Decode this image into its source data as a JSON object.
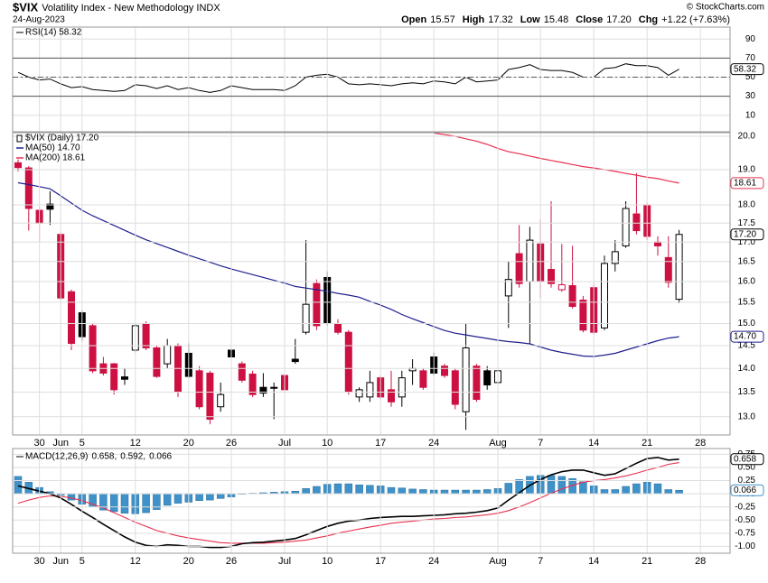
{
  "header": {
    "symbol": "$VIX",
    "name": "Volatility Index - New Methodology INDX",
    "date": "24-Aug-2023",
    "watermark": "© StockCharts.com",
    "quote": [
      {
        "label": "Open",
        "value": "15.57"
      },
      {
        "label": "High",
        "value": "17.32"
      },
      {
        "label": "Low",
        "value": "15.48"
      },
      {
        "label": "Close",
        "value": "17.20"
      },
      {
        "label": "Chg",
        "value": "+1.22 (+7.63%)"
      }
    ]
  },
  "chart_data": [
    {
      "type": "candlestick",
      "name": "$VIX (Daily) 17.20",
      "log": true,
      "up_color": "#000000",
      "down_color": "#cc1142",
      "x": [
        "2023-05-25",
        "2023-05-26",
        "2023-05-30",
        "2023-05-31",
        "2023-06-01",
        "2023-06-02",
        "2023-06-05",
        "2023-06-06",
        "2023-06-07",
        "2023-06-08",
        "2023-06-09",
        "2023-06-12",
        "2023-06-13",
        "2023-06-14",
        "2023-06-15",
        "2023-06-16",
        "2023-06-20",
        "2023-06-21",
        "2023-06-22",
        "2023-06-23",
        "2023-06-26",
        "2023-06-27",
        "2023-06-28",
        "2023-06-29",
        "2023-06-30",
        "2023-07-03",
        "2023-07-05",
        "2023-07-06",
        "2023-07-07",
        "2023-07-10",
        "2023-07-11",
        "2023-07-12",
        "2023-07-13",
        "2023-07-14",
        "2023-07-17",
        "2023-07-18",
        "2023-07-19",
        "2023-07-20",
        "2023-07-21",
        "2023-07-24",
        "2023-07-25",
        "2023-07-26",
        "2023-07-27",
        "2023-07-28",
        "2023-07-31",
        "2023-08-01",
        "2023-08-02",
        "2023-08-03",
        "2023-08-04",
        "2023-08-07",
        "2023-08-08",
        "2023-08-09",
        "2023-08-10",
        "2023-08-11",
        "2023-08-14",
        "2023-08-15",
        "2023-08-16",
        "2023-08-17",
        "2023-08-18",
        "2023-08-21",
        "2023-08-22",
        "2023-08-23",
        "2023-08-24"
      ],
      "open": [
        19.2,
        19.05,
        17.85,
        18.02,
        17.2,
        15.75,
        15.25,
        14.95,
        14.1,
        14.1,
        13.82,
        14.4,
        15,
        14.45,
        14.1,
        14.5,
        14.33,
        13.95,
        13.9,
        13.2,
        14.4,
        14.1,
        13.88,
        13.6,
        13.6,
        13.85,
        14.2,
        14.8,
        15.95,
        16.1,
        15,
        14.8,
        13.4,
        13.4,
        13.8,
        13.55,
        13.4,
        13.95,
        13.95,
        14.25,
        14.05,
        13.95,
        13.1,
        14.05,
        13.95,
        13.7,
        15.65,
        16.7,
        16,
        16.95,
        16.3,
        15.8,
        15.9,
        15.55,
        15.85,
        14.9,
        16.45,
        16.9,
        17.75,
        18,
        17,
        16.6,
        15.57
      ],
      "high": [
        19.3,
        19.1,
        17.95,
        18.38,
        17.25,
        15.8,
        15.3,
        15,
        14.25,
        14.12,
        14,
        15,
        15.05,
        14.5,
        14.65,
        14.55,
        14.55,
        14.05,
        13.95,
        13.7,
        14.65,
        14.15,
        13.95,
        13.9,
        13.7,
        13.95,
        14.65,
        17.05,
        16.05,
        16.25,
        15.1,
        14.85,
        13.6,
        13.95,
        13.85,
        13.95,
        13.95,
        14.2,
        14,
        14.35,
        14.1,
        14,
        15,
        14.1,
        14.05,
        14.25,
        16.5,
        17.45,
        17.4,
        17.6,
        18.1,
        16.95,
        16.9,
        15.65,
        15.95,
        16.65,
        17.05,
        18.1,
        18.9,
        18.05,
        17.15,
        17.15,
        17.32
      ],
      "low": [
        18.95,
        17.3,
        17,
        17.45,
        15.55,
        14.4,
        14.6,
        13.9,
        13.85,
        13.45,
        13.65,
        14.35,
        14.4,
        13.8,
        14,
        13.4,
        13.8,
        13.15,
        12.85,
        13.1,
        14,
        13.7,
        13.4,
        13.4,
        12.95,
        13.5,
        14.1,
        14.75,
        14.85,
        14.95,
        14.75,
        13.45,
        13.3,
        13.3,
        13.35,
        13.2,
        13.2,
        13.65,
        13.55,
        13.85,
        13.8,
        13.15,
        12.74,
        13.3,
        13.55,
        13.65,
        14.9,
        15.85,
        14.55,
        15.6,
        15.85,
        15.75,
        15.35,
        14.8,
        14.75,
        14.85,
        16.25,
        16.85,
        17.2,
        17.05,
        16.65,
        15.85,
        15.48
      ],
      "close": [
        19.06,
        17.9,
        17.5,
        17.88,
        15.6,
        14.55,
        14.7,
        13.95,
        13.9,
        13.55,
        13.77,
        14.95,
        14.45,
        13.83,
        14.5,
        13.5,
        13.83,
        13.2,
        12.95,
        13.45,
        14.25,
        13.75,
        13.45,
        13.48,
        13.58,
        13.55,
        14.15,
        15.45,
        14.95,
        15,
        14.8,
        13.5,
        13.55,
        13.7,
        13.4,
        13.3,
        13.8,
        14,
        13.6,
        13.9,
        13.85,
        13.25,
        14.45,
        13.35,
        13.65,
        13.95,
        16.05,
        15.95,
        17.05,
        16,
        15.95,
        15.92,
        15.4,
        14.85,
        14.8,
        16.45,
        16.75,
        17.9,
        17.3,
        17.15,
        16.9,
        15.98,
        17.2
      ],
      "last_label": {
        "value": 17.2,
        "label": "17.20"
      },
      "overlays": [
        {
          "name": "MA(50) 14.70",
          "color": "#1f1f8f",
          "values": [
            18.62,
            18.57,
            18.51,
            18.45,
            18.25,
            18.05,
            17.85,
            17.7,
            17.57,
            17.44,
            17.31,
            17.18,
            17.06,
            16.96,
            16.86,
            16.76,
            16.66,
            16.57,
            16.48,
            16.39,
            16.31,
            16.24,
            16.17,
            16.1,
            16.03,
            15.96,
            15.88,
            15.84,
            15.8,
            15.76,
            15.71,
            15.67,
            15.62,
            15.52,
            15.43,
            15.33,
            15.21,
            15.11,
            15.02,
            14.93,
            14.84,
            14.78,
            14.74,
            14.7,
            14.66,
            14.62,
            14.59,
            14.57,
            14.54,
            14.47,
            14.4,
            14.35,
            14.31,
            14.27,
            14.26,
            14.29,
            14.33,
            14.4,
            14.47,
            14.54,
            14.61,
            14.67,
            14.7
          ],
          "last_label": {
            "value": 14.7,
            "label": "14.70"
          }
        },
        {
          "name": "MA(200) 18.61",
          "color": "#e8304f",
          "values": [
            null,
            null,
            null,
            null,
            null,
            null,
            null,
            null,
            null,
            null,
            null,
            null,
            null,
            null,
            null,
            null,
            null,
            null,
            null,
            null,
            null,
            null,
            null,
            null,
            null,
            null,
            null,
            null,
            null,
            null,
            null,
            null,
            null,
            null,
            null,
            null,
            null,
            null,
            null,
            20.1,
            20.05,
            20,
            19.92,
            19.85,
            19.75,
            19.63,
            19.53,
            19.47,
            19.4,
            19.33,
            19.27,
            19.21,
            19.15,
            19.09,
            19.05,
            19,
            18.95,
            18.89,
            18.84,
            18.78,
            18.74,
            18.67,
            18.61
          ],
          "last_label": 18.61
        }
      ],
      "ylim": [
        12.64,
        20.11
      ],
      "yticks": [
        {
          "value": 20,
          "label": "20.0"
        },
        {
          "value": 19,
          "label": "19.0"
        },
        {
          "value": 18,
          "label": "18.0"
        },
        17.5,
        {
          "value": 17,
          "label": "17.0"
        },
        16.5,
        {
          "value": 16,
          "label": "16.0"
        },
        15.5,
        {
          "value": 15,
          "label": "15.0"
        },
        14.5,
        {
          "value": 14,
          "label": "14.0"
        },
        13.5,
        {
          "value": 13,
          "label": "13.0"
        }
      ],
      "xticks": [
        {
          "value": "2023-05-30",
          "label": "30"
        },
        {
          "value": "2023-06-01",
          "label": "Jun"
        },
        {
          "value": "2023-06-05",
          "label": "5"
        },
        {
          "value": "2023-06-12",
          "label": "12"
        },
        {
          "value": "2023-06-20",
          "label": "20"
        },
        {
          "value": "2023-06-26",
          "label": "26"
        },
        {
          "value": "2023-07-03",
          "label": "Jul"
        },
        {
          "value": "2023-07-10",
          "label": "10"
        },
        {
          "value": "2023-07-17",
          "label": "17"
        },
        {
          "value": "2023-07-24",
          "label": "24"
        },
        {
          "value": "2023-08-01",
          "label": "Aug"
        },
        {
          "value": "2023-08-07",
          "label": "7"
        },
        {
          "value": "2023-08-14",
          "label": "14"
        },
        {
          "value": "2023-08-21",
          "label": "21"
        },
        {
          "value": "2023-08-28",
          "label": "28"
        }
      ],
      "grid": true
    },
    {
      "type": "line",
      "ylim": [
        -7.3,
        102.5
      ],
      "yticks": [
        90,
        70,
        50,
        30,
        10
      ],
      "grid": true,
      "ref_lines": [
        {
          "value": 70,
          "style": "solid"
        },
        {
          "value": 50,
          "style": "dashdot"
        },
        {
          "value": 30,
          "style": "solid"
        }
      ],
      "series": [
        {
          "name": "RSI(14) 58.32",
          "color": "#000000",
          "values": [
            55,
            50,
            47,
            48,
            43,
            39,
            40,
            37,
            36,
            35,
            36,
            42,
            41,
            38,
            41,
            37,
            39,
            36,
            34,
            36,
            41,
            39,
            37,
            37,
            37,
            36,
            41,
            50,
            52,
            53,
            50,
            43,
            42,
            43,
            42,
            41,
            43,
            44,
            43,
            46,
            45,
            43,
            50,
            45,
            46,
            47,
            58,
            60,
            63,
            58,
            57,
            57,
            55,
            50,
            50,
            59,
            60,
            64,
            62,
            62,
            60,
            52,
            58.32
          ],
          "last_label": 58.32
        }
      ]
    },
    {
      "type": "macd",
      "legend_title": "MACD(12,26,9)",
      "ylim": [
        -1.13,
        0.86
      ],
      "yticks": [
        0.75,
        {
          "value": 0.5,
          "label": "0.50"
        },
        0.25,
        {
          "value": 0,
          "label": "0.00"
        },
        -0.25,
        {
          "value": -0.5,
          "label": "-0.50"
        },
        -0.75,
        {
          "value": -1,
          "label": "-1.00"
        }
      ],
      "grid": true,
      "series": [
        {
          "name": "0.066",
          "kind": "bar",
          "color": "#3f92c9",
          "values": [
            0.33,
            0.22,
            0.12,
            0.04,
            -0.03,
            -0.12,
            -0.2,
            -0.25,
            -0.31,
            -0.34,
            -0.37,
            -0.38,
            -0.36,
            -0.3,
            -0.22,
            -0.18,
            -0.16,
            -0.13,
            -0.12,
            -0.09,
            -0.06,
            -0.01,
            0.01,
            0.02,
            0.03,
            0.04,
            0.05,
            0.1,
            0.14,
            0.18,
            0.19,
            0.19,
            0.17,
            0.16,
            0.15,
            0.12,
            0.11,
            0.09,
            0.08,
            0.07,
            0.07,
            0.07,
            0.07,
            0.07,
            0.08,
            0.1,
            0.2,
            0.27,
            0.33,
            0.35,
            0.35,
            0.33,
            0.29,
            0.23,
            0.15,
            0.08,
            0.08,
            0.14,
            0.19,
            0.22,
            0.19,
            0.08,
            0.066
          ],
          "last_label": 0.066
        },
        {
          "name": "0.592,",
          "kind": "line",
          "color": "#e8304f",
          "values": [
            -0.18,
            -0.12,
            -0.07,
            -0.04,
            -0.05,
            -0.08,
            -0.13,
            -0.2,
            -0.27,
            -0.36,
            -0.45,
            -0.54,
            -0.62,
            -0.7,
            -0.75,
            -0.8,
            -0.84,
            -0.87,
            -0.9,
            -0.93,
            -0.94,
            -0.94,
            -0.94,
            -0.94,
            -0.93,
            -0.92,
            -0.9,
            -0.88,
            -0.84,
            -0.8,
            -0.75,
            -0.71,
            -0.67,
            -0.63,
            -0.6,
            -0.56,
            -0.54,
            -0.52,
            -0.5,
            -0.48,
            -0.47,
            -0.45,
            -0.44,
            -0.42,
            -0.4,
            -0.37,
            -0.32,
            -0.25,
            -0.17,
            -0.08,
            0.01,
            0.09,
            0.16,
            0.22,
            0.25,
            0.27,
            0.3,
            0.34,
            0.39,
            0.45,
            0.5,
            0.56,
            0.592
          ]
        },
        {
          "name": "0.658,",
          "kind": "line",
          "color": "#000000",
          "values": [
            0.15,
            0.1,
            0.05,
            0,
            -0.08,
            -0.2,
            -0.33,
            -0.45,
            -0.58,
            -0.7,
            -0.82,
            -0.92,
            -0.98,
            -1,
            -0.97,
            -0.98,
            -1,
            -1,
            -1.02,
            -1.02,
            -1,
            -0.95,
            -0.93,
            -0.92,
            -0.9,
            -0.88,
            -0.85,
            -0.78,
            -0.7,
            -0.62,
            -0.56,
            -0.52,
            -0.5,
            -0.47,
            -0.45,
            -0.44,
            -0.43,
            -0.43,
            -0.42,
            -0.41,
            -0.4,
            -0.38,
            -0.37,
            -0.35,
            -0.32,
            -0.27,
            -0.12,
            0.02,
            0.16,
            0.27,
            0.36,
            0.42,
            0.45,
            0.45,
            0.4,
            0.35,
            0.38,
            0.48,
            0.58,
            0.67,
            0.69,
            0.64,
            0.658
          ],
          "last_label": 0.658
        }
      ],
      "legend_order": [
        2,
        1,
        0
      ],
      "xticks": [
        {
          "value": "2023-05-30",
          "label": "30"
        },
        {
          "value": "2023-06-01",
          "label": "Jun"
        },
        {
          "value": "2023-06-05",
          "label": "5"
        },
        {
          "value": "2023-06-12",
          "label": "12"
        },
        {
          "value": "2023-06-20",
          "label": "20"
        },
        {
          "value": "2023-06-26",
          "label": "26"
        },
        {
          "value": "2023-07-03",
          "label": "Jul"
        },
        {
          "value": "2023-07-10",
          "label": "10"
        },
        {
          "value": "2023-07-17",
          "label": "17"
        },
        {
          "value": "2023-07-24",
          "label": "24"
        },
        {
          "value": "2023-08-01",
          "label": "Aug"
        },
        {
          "value": "2023-08-07",
          "label": "7"
        },
        {
          "value": "2023-08-14",
          "label": "14"
        },
        {
          "value": "2023-08-21",
          "label": "21"
        },
        {
          "value": "2023-08-28",
          "label": "28"
        }
      ]
    }
  ]
}
